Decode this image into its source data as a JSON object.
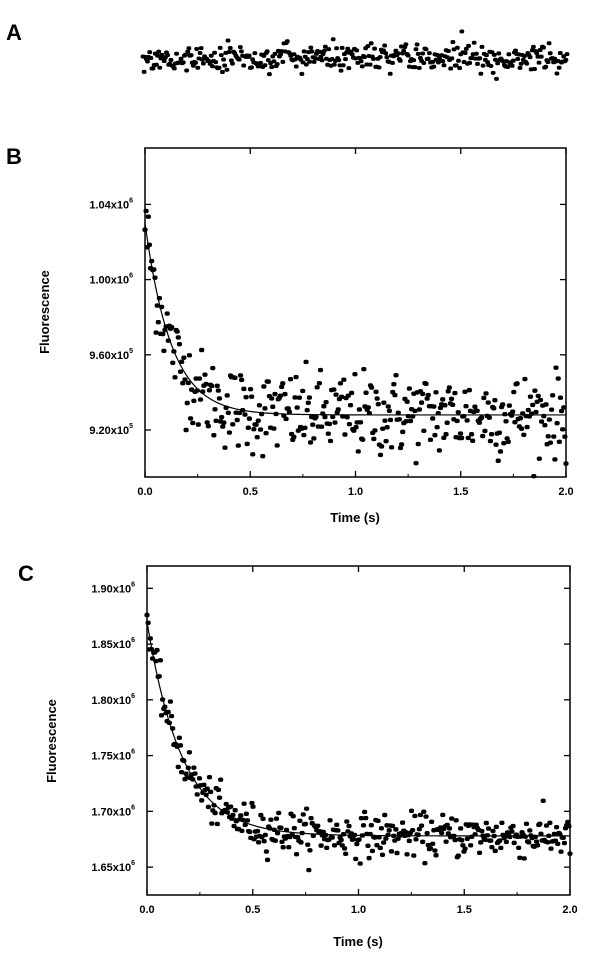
{
  "chart_data": [
    {
      "panel": "A",
      "type": "scatter",
      "title": "",
      "xlabel": "",
      "ylabel": "",
      "note": "residuals trace, no axes shown",
      "points_x": [
        0.0,
        0.0,
        0.0,
        0.0,
        0.0
      ],
      "noise_amplitude": 1,
      "color": "#000000"
    },
    {
      "panel": "B",
      "type": "scatter",
      "title": "",
      "xlabel": "Time (s)",
      "ylabel": "Fluorescence",
      "xlim": [
        0.0,
        2.0
      ],
      "ylim": [
        895000.0,
        1070000.0
      ],
      "xticks": [
        "0.0",
        "0.5",
        "1.0",
        "1.5",
        "2.0"
      ],
      "xtick_values": [
        0.0,
        0.5,
        1.0,
        1.5,
        2.0
      ],
      "yticks": [
        {
          "mantissa": "9.20x10",
          "exp": "5",
          "value": 920000
        },
        {
          "mantissa": "9.60x10",
          "exp": "5",
          "value": 960000
        },
        {
          "mantissa": "1.00x10",
          "exp": "6",
          "value": 1000000
        },
        {
          "mantissa": "1.04x10",
          "exp": "6",
          "value": 1040000
        }
      ],
      "fit": {
        "form": "exponential decay",
        "y0": 1030000,
        "plateau": 928000,
        "rate": 8.0
      },
      "noise_amplitude": 14000,
      "n_points": 380,
      "grid": false,
      "color": "#000000"
    },
    {
      "panel": "C",
      "type": "scatter",
      "title": "",
      "xlabel": "Time (s)",
      "ylabel": "Fluorescence",
      "xlim": [
        0.0,
        2.0
      ],
      "ylim": [
        1625000.0,
        1920000.0
      ],
      "xticks": [
        "0.0",
        "0.5",
        "1.0",
        "1.5",
        "2.0"
      ],
      "xtick_values": [
        0.0,
        0.5,
        1.0,
        1.5,
        2.0
      ],
      "yticks": [
        {
          "mantissa": "1.65x10",
          "exp": "6",
          "value": 1650000
        },
        {
          "mantissa": "1.70x10",
          "exp": "6",
          "value": 1700000
        },
        {
          "mantissa": "1.75x10",
          "exp": "6",
          "value": 1750000
        },
        {
          "mantissa": "1.80x10",
          "exp": "6",
          "value": 1800000
        },
        {
          "mantissa": "1.85x10",
          "exp": "6",
          "value": 1850000
        },
        {
          "mantissa": "1.90x10",
          "exp": "6",
          "value": 1900000
        }
      ],
      "fit": {
        "form": "exponential decay",
        "y0": 1870000,
        "plateau": 1678000,
        "rate": 6.0
      },
      "noise_amplitude": 12000,
      "n_points": 380,
      "grid": false,
      "color": "#000000"
    }
  ],
  "labels": {
    "A": "A",
    "B": "B",
    "C": "C"
  }
}
